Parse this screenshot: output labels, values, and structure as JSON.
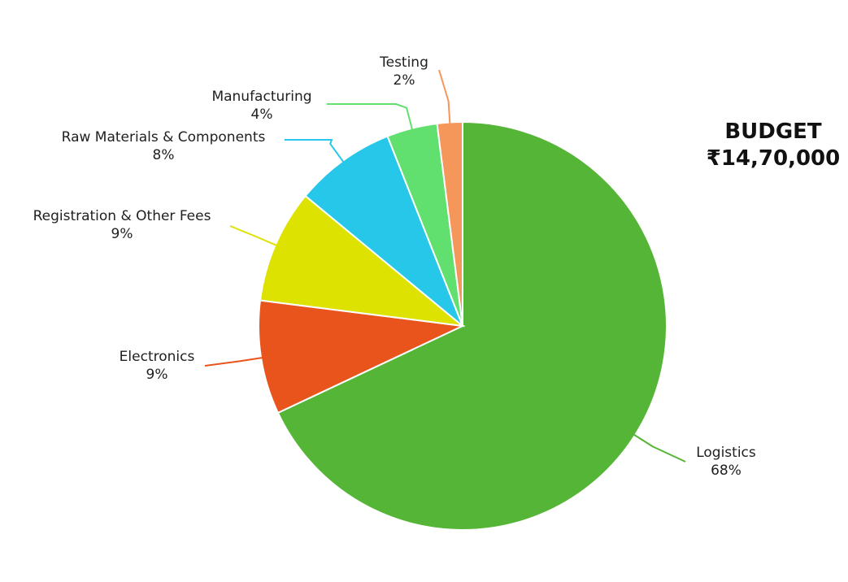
{
  "chart_data": {
    "type": "pie",
    "categories": [
      "Logistics",
      "Electronics",
      "Registration & Other Fees",
      "Raw Materials & Components",
      "Manufacturing",
      "Testing"
    ],
    "values": [
      68,
      9,
      9,
      8,
      4,
      2
    ],
    "value_labels": [
      "68%",
      "9%",
      "9%",
      "8%",
      "4%",
      "2%"
    ],
    "colors": [
      "#55b536",
      "#e8541c",
      "#dde200",
      "#26c7e8",
      "#62e06f",
      "#f5965a"
    ],
    "unit": "%"
  },
  "budget": {
    "title": "BUDGET",
    "amount": "₹14,70,000"
  }
}
